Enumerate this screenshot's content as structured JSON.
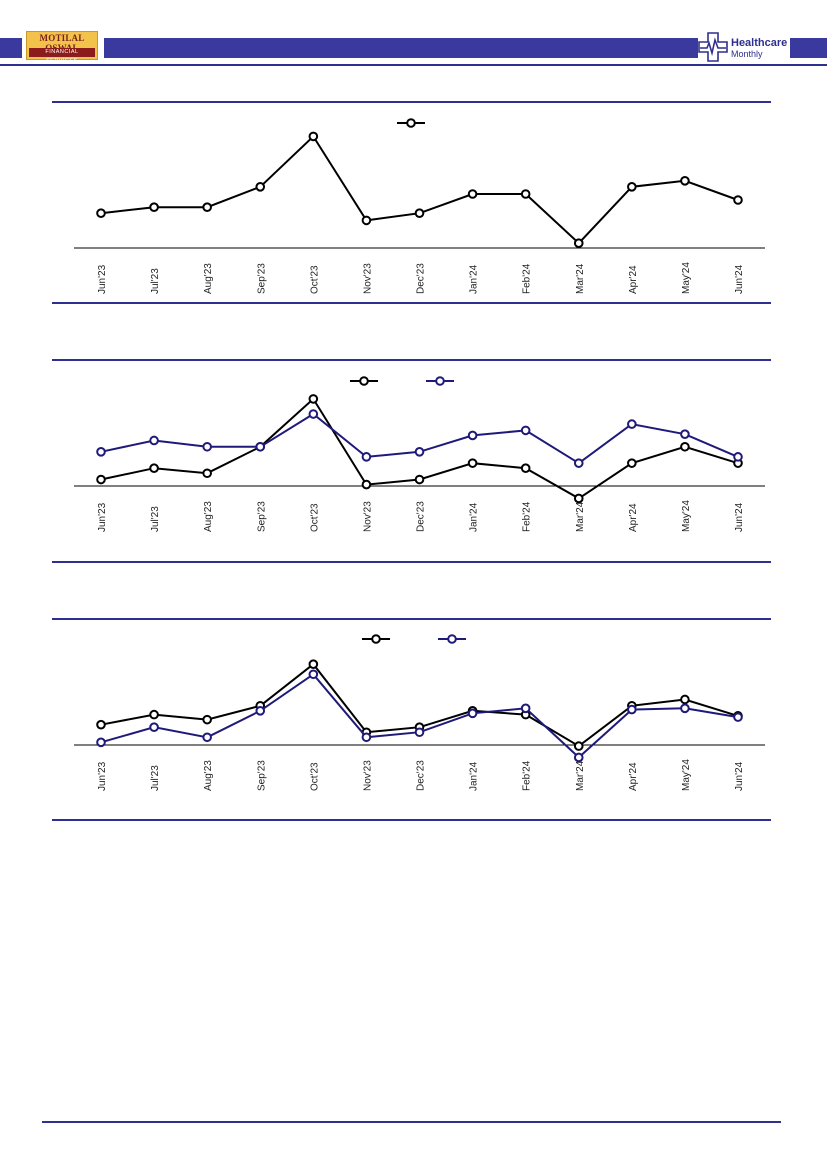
{
  "header": {
    "logo_top": "MOTILAL OSWAL",
    "logo_bottom": "FINANCIAL SERVICES",
    "report_title": "Healthcare",
    "report_subtitle": "Monthly"
  },
  "colors": {
    "accent": "#2f2f8f",
    "series_black": "#000000",
    "series_blue": "#1f1a7a"
  },
  "chart_data": [
    {
      "type": "line",
      "title": "",
      "xlabel": "",
      "ylabel": "",
      "categories": [
        "Jun'23",
        "Jul'23",
        "Aug'23",
        "Sep'23",
        "Oct'23",
        "Nov'23",
        "Dec'23",
        "Jan'24",
        "Feb'24",
        "Mar'24",
        "Apr'24",
        "May'24",
        "Jun'24"
      ],
      "ylim": [
        0,
        10
      ],
      "legend": "top-center",
      "grid": false,
      "series": [
        {
          "values": [
            2.9,
            3.4,
            3.4,
            5.1,
            9.3,
            2.3,
            2.9,
            4.5,
            4.5,
            0.4,
            5.1,
            5.6,
            4.0
          ],
          "color": "#000000"
        }
      ]
    },
    {
      "type": "line",
      "title": "",
      "xlabel": "",
      "ylabel": "",
      "categories": [
        "Jun'23",
        "Jul'23",
        "Aug'23",
        "Sep'23",
        "Oct'23",
        "Nov'23",
        "Dec'23",
        "Jan'24",
        "Feb'24",
        "Mar'24",
        "Apr'24",
        "May'24",
        "Jun'24"
      ],
      "ylim": [
        -1,
        9
      ],
      "legend": "top-center",
      "grid": false,
      "series": [
        {
          "values": [
            1.1,
            2.0,
            1.6,
            3.7,
            7.5,
            0.7,
            1.1,
            2.4,
            2.0,
            -0.4,
            2.4,
            3.7,
            2.4
          ],
          "color": "#000000"
        },
        {
          "values": [
            3.3,
            4.2,
            3.7,
            3.7,
            6.3,
            2.9,
            3.3,
            4.6,
            5.0,
            2.4,
            5.5,
            4.7,
            2.9
          ],
          "color": "#1f1a7a"
        }
      ]
    },
    {
      "type": "line",
      "title": "",
      "xlabel": "",
      "ylabel": "",
      "categories": [
        "Jun'23",
        "Jul'23",
        "Aug'23",
        "Sep'23",
        "Oct'23",
        "Nov'23",
        "Dec'23",
        "Jan'24",
        "Feb'24",
        "Mar'24",
        "Apr'24",
        "May'24",
        "Jun'24"
      ],
      "ylim": [
        -1,
        9
      ],
      "legend": "top-center",
      "grid": false,
      "series": [
        {
          "values": [
            2.2,
            3.0,
            2.6,
            3.7,
            7.0,
            1.6,
            2.0,
            3.3,
            3.0,
            0.5,
            3.7,
            4.2,
            2.9
          ],
          "color": "#000000"
        },
        {
          "values": [
            0.8,
            2.0,
            1.2,
            3.3,
            6.2,
            1.2,
            1.6,
            3.1,
            3.5,
            -0.4,
            3.4,
            3.5,
            2.8
          ],
          "color": "#1f1a7a"
        }
      ]
    }
  ]
}
